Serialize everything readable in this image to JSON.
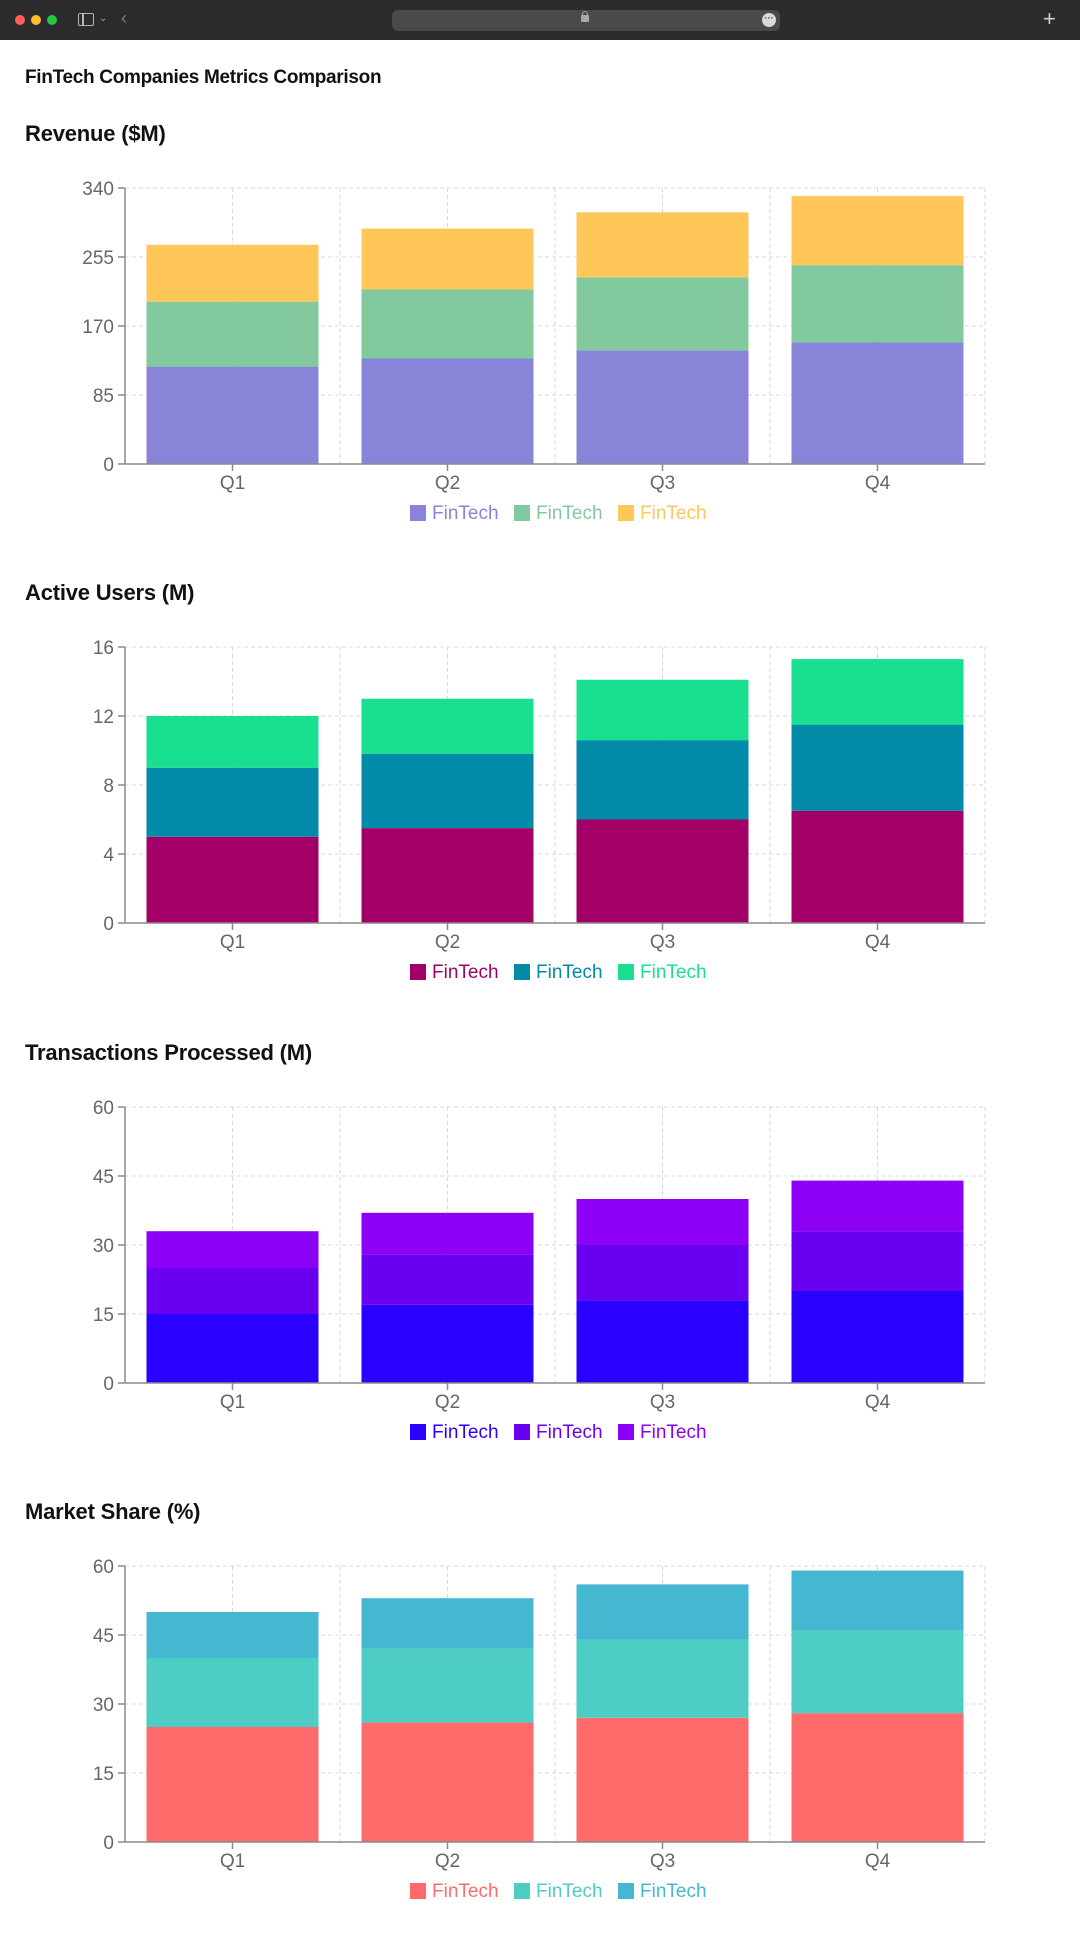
{
  "page": {
    "title": "FinTech Companies Metrics Comparison"
  },
  "browser": {
    "icons": [
      "sidebar-icon",
      "chevron-down-icon",
      "back-icon",
      "lock-icon",
      "more-icon",
      "plus-icon"
    ]
  },
  "chart_data": [
    {
      "type": "bar",
      "stacked": true,
      "title": "Revenue ($M)",
      "categories": [
        "Q1",
        "Q2",
        "Q3",
        "Q4"
      ],
      "ylim": [
        0,
        340
      ],
      "yticks": [
        "0",
        "85",
        "170",
        "255",
        "340"
      ],
      "grid": true,
      "legend": "bottom-center",
      "series": [
        {
          "name": "FinTech",
          "color": "#8884d8",
          "values": [
            120,
            130,
            140,
            150
          ]
        },
        {
          "name": "FinTech",
          "color": "#82ca9d",
          "values": [
            80,
            85,
            90,
            95
          ]
        },
        {
          "name": "FinTech",
          "color": "#ffc658",
          "values": [
            70,
            75,
            80,
            85
          ]
        }
      ]
    },
    {
      "type": "bar",
      "stacked": true,
      "title": "Active Users (M)",
      "categories": [
        "Q1",
        "Q2",
        "Q3",
        "Q4"
      ],
      "ylim": [
        0,
        16
      ],
      "yticks": [
        "0",
        "4",
        "8",
        "12",
        "16"
      ],
      "grid": true,
      "legend": "bottom-center",
      "series": [
        {
          "name": "FinTech",
          "color": "#a30067",
          "values": [
            5,
            5.5,
            6,
            6.5
          ]
        },
        {
          "name": "FinTech",
          "color": "#028aa8",
          "values": [
            4,
            4.3,
            4.6,
            5
          ]
        },
        {
          "name": "FinTech",
          "color": "#19df90",
          "values": [
            3,
            3.2,
            3.5,
            3.8
          ]
        }
      ]
    },
    {
      "type": "bar",
      "stacked": true,
      "title": "Transactions Processed (M)",
      "categories": [
        "Q1",
        "Q2",
        "Q3",
        "Q4"
      ],
      "ylim": [
        0,
        60
      ],
      "yticks": [
        "0",
        "15",
        "30",
        "45",
        "60"
      ],
      "grid": true,
      "legend": "bottom-center",
      "series": [
        {
          "name": "FinTech",
          "color": "#2a00ff",
          "values": [
            15,
            17,
            18,
            20
          ]
        },
        {
          "name": "FinTech",
          "color": "#6a00f0",
          "values": [
            10,
            11,
            12,
            13
          ]
        },
        {
          "name": "FinTech",
          "color": "#8c00f5",
          "values": [
            8,
            9,
            10,
            11
          ]
        }
      ]
    },
    {
      "type": "bar",
      "stacked": true,
      "title": "Market Share (%)",
      "categories": [
        "Q1",
        "Q2",
        "Q3",
        "Q4"
      ],
      "ylim": [
        0,
        60
      ],
      "yticks": [
        "0",
        "15",
        "30",
        "45",
        "60"
      ],
      "grid": true,
      "legend": "bottom-center",
      "series": [
        {
          "name": "FinTech",
          "color": "#ff6b6b",
          "values": [
            25,
            26,
            27,
            28
          ]
        },
        {
          "name": "FinTech",
          "color": "#4ecdc4",
          "values": [
            15,
            16,
            17,
            18
          ]
        },
        {
          "name": "FinTech",
          "color": "#45b7d1",
          "values": [
            10,
            11,
            12,
            13
          ]
        }
      ]
    }
  ]
}
